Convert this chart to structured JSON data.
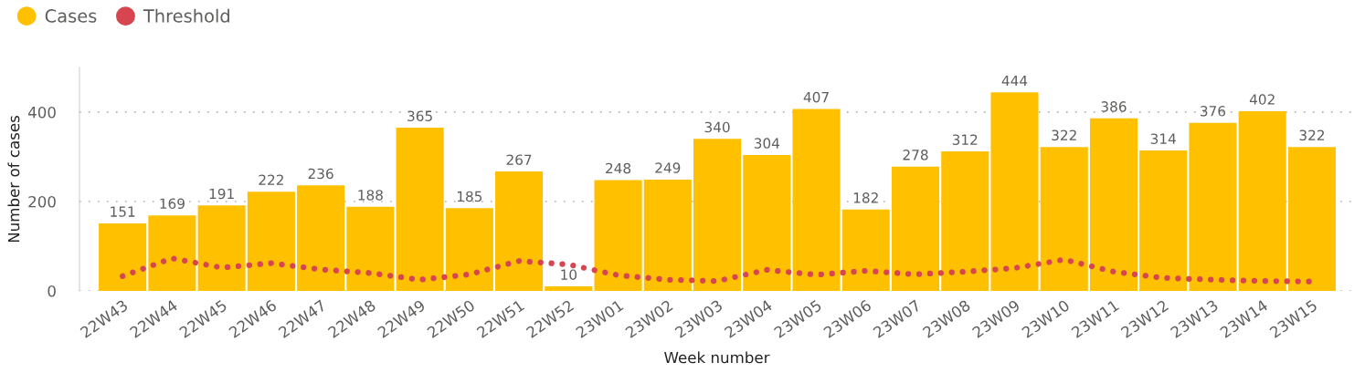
{
  "chart_data": {
    "type": "bar",
    "xlabel": "Week number",
    "ylabel": "Number of cases",
    "categories": [
      "22W43",
      "22W44",
      "22W45",
      "22W46",
      "22W47",
      "22W48",
      "22W49",
      "22W50",
      "22W51",
      "22W52",
      "23W01",
      "23W02",
      "23W03",
      "23W04",
      "23W05",
      "23W06",
      "23W07",
      "23W08",
      "23W09",
      "23W10",
      "23W11",
      "23W12",
      "23W13",
      "23W14",
      "23W15"
    ],
    "series": [
      {
        "name": "Cases",
        "color": "#FFC000",
        "values": [
          151,
          169,
          191,
          222,
          236,
          188,
          365,
          185,
          267,
          10,
          248,
          249,
          340,
          304,
          407,
          182,
          278,
          312,
          444,
          322,
          386,
          314,
          376,
          402,
          322
        ],
        "value_labels": [
          "151",
          "169",
          "191",
          "222",
          "236",
          "188",
          "365",
          "185",
          "267",
          "10",
          "248",
          "249",
          "340",
          "304",
          "407",
          "182",
          "278",
          "312",
          "444",
          "322",
          "386",
          "314",
          "376",
          "402",
          "322"
        ]
      },
      {
        "name": "Threshold",
        "type": "line",
        "color": "#D64550",
        "line_style": "dotted",
        "values": [
          33,
          73,
          52,
          62,
          48,
          40,
          25,
          37,
          67,
          59,
          35,
          25,
          22,
          47,
          36,
          45,
          37,
          43,
          51,
          70,
          43,
          29,
          25,
          22,
          21
        ]
      }
    ],
    "ylim": [
      0,
      500
    ],
    "yticks": [
      0,
      200,
      400
    ],
    "grid": "y",
    "legend": "top left"
  }
}
